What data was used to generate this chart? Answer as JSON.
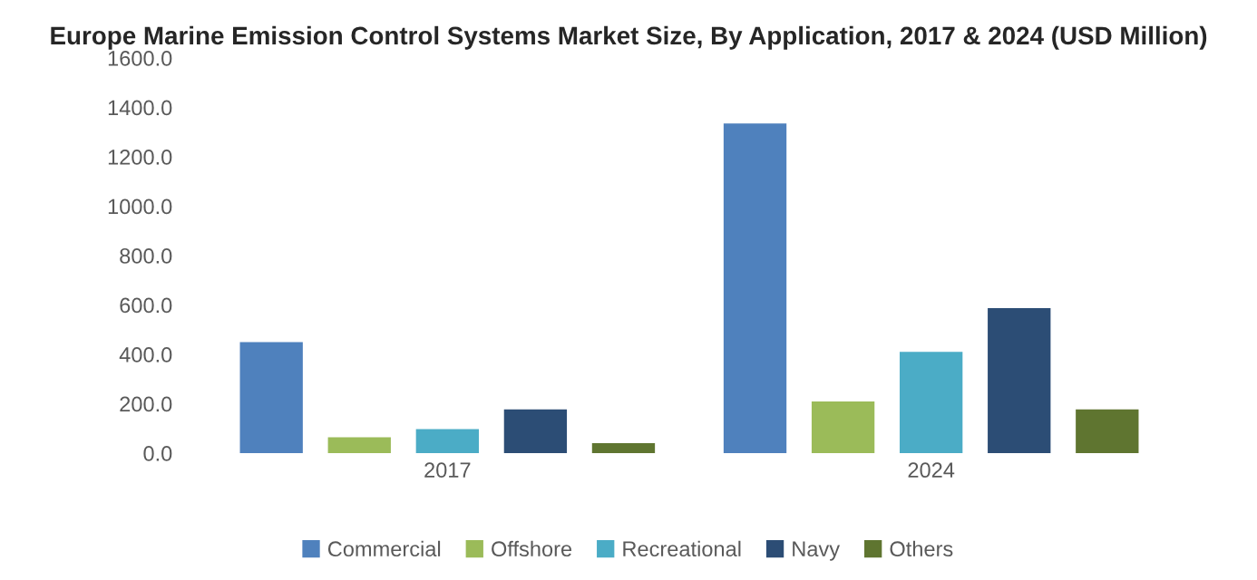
{
  "chart_data": {
    "type": "bar",
    "title": "Europe Marine Emission Control Systems Market Size, By Application, 2017 & 2024 (USD Million)",
    "categories": [
      "2017",
      "2024"
    ],
    "series": [
      {
        "name": "Commercial",
        "color": "#4f81bd",
        "values": [
          450,
          1335
        ]
      },
      {
        "name": "Offshore",
        "color": "#9bbb59",
        "values": [
          64,
          209
        ]
      },
      {
        "name": "Recreational",
        "color": "#4bacc6",
        "values": [
          97,
          410
        ]
      },
      {
        "name": "Navy",
        "color": "#2c4d75",
        "values": [
          177,
          587
        ]
      },
      {
        "name": "Others",
        "color": "#5f7530",
        "values": [
          40,
          177
        ]
      }
    ],
    "ylim": [
      0,
      1600
    ],
    "yticks": [
      {
        "value": 0,
        "label": "0.0"
      },
      {
        "value": 200,
        "label": "200.0"
      },
      {
        "value": 400,
        "label": "400.0"
      },
      {
        "value": 600,
        "label": "600.0"
      },
      {
        "value": 800,
        "label": "800.0"
      },
      {
        "value": 1000,
        "label": "1000.0"
      },
      {
        "value": 1200,
        "label": "1200.0"
      },
      {
        "value": 1400,
        "label": "1400.0"
      },
      {
        "value": 1600,
        "label": "1600.0"
      }
    ],
    "grid": false,
    "legend": "bottom"
  }
}
